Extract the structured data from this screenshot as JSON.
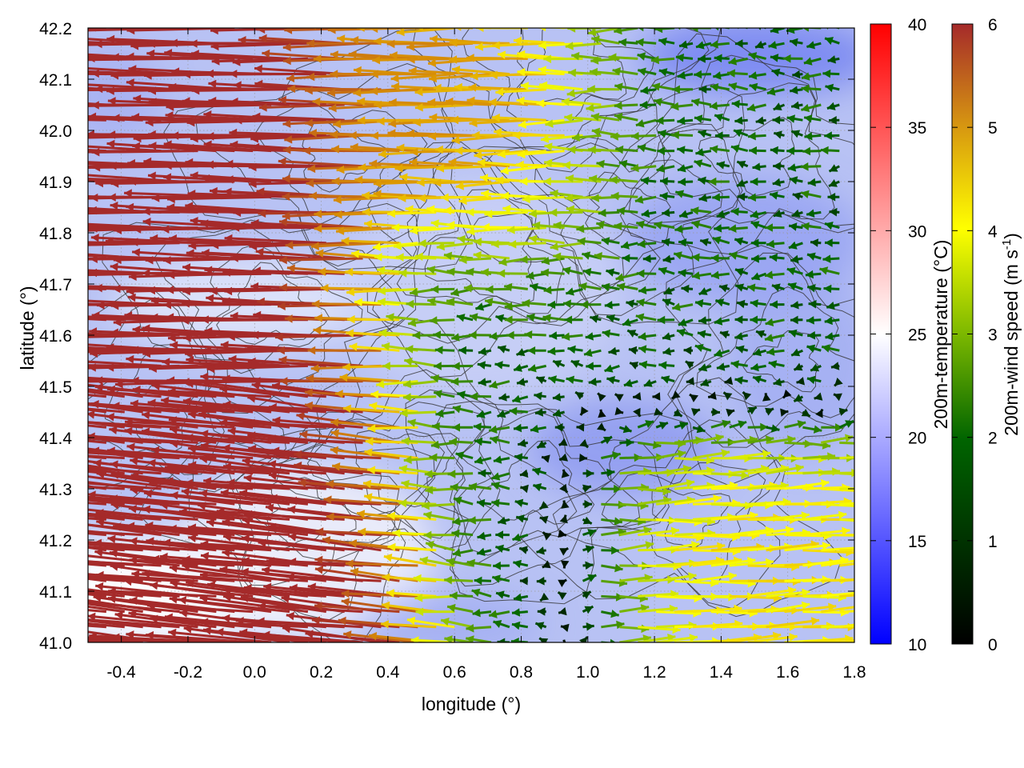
{
  "chart_data": {
    "type": "heatmap",
    "title": "",
    "xlabel": "longitude (°)",
    "ylabel": "latitude (°)",
    "xlim": [
      -0.5,
      1.8
    ],
    "ylim": [
      41.0,
      42.2
    ],
    "x_ticks": [
      "-0.4",
      "-0.2",
      "0.0",
      "0.2",
      "0.4",
      "0.6",
      "0.8",
      "1.0",
      "1.2",
      "1.4",
      "1.6",
      "1.8"
    ],
    "y_ticks": [
      "41.0",
      "41.1",
      "41.2",
      "41.3",
      "41.4",
      "41.5",
      "41.6",
      "41.7",
      "41.8",
      "41.9",
      "42.0",
      "42.1",
      "42.2"
    ],
    "grid": true,
    "background_field": {
      "name": "200m-temperature",
      "colorbar_label": "200m-temperature (°C)",
      "range": [
        10,
        40
      ],
      "ticks": [
        "10",
        "15",
        "20",
        "25",
        "30",
        "35",
        "40"
      ],
      "colors": [
        "#0000ff",
        "#ffffff",
        "#ff0000"
      ]
    },
    "vector_field": {
      "name": "200m-wind speed",
      "colorbar_label": "200m-wind speed (m s",
      "colorbar_label_sup": "-1",
      "colorbar_label_end": ")",
      "range": [
        0,
        6
      ],
      "ticks": [
        "0",
        "1",
        "2",
        "3",
        "4",
        "5",
        "6"
      ],
      "colors": [
        "#000000",
        "#006400",
        "#7cb800",
        "#ffff00",
        "#e0a000",
        "#c06018",
        "#a52a2a"
      ],
      "regimes": [
        {
          "region": "west",
          "lon_range": [
            -0.5,
            0.55
          ],
          "direction": "easterly flow (arrows point west)",
          "speed": 6
        },
        {
          "region": "north-central",
          "lon_range": [
            0.4,
            1.0
          ],
          "lat_range": [
            41.8,
            42.2
          ],
          "direction": "easterly",
          "speed": 3.5
        },
        {
          "region": "east",
          "lon_range": [
            1.0,
            1.8
          ],
          "lat_range": [
            41.5,
            42.2
          ],
          "direction": "easterly",
          "speed": 1.5
        },
        {
          "region": "south-east",
          "lon_range": [
            1.1,
            1.8
          ],
          "lat_range": [
            41.0,
            41.45
          ],
          "direction": "westerly (arrows point east)",
          "speed": 3.0
        }
      ]
    },
    "contours": {
      "color": "#333333",
      "description": "terrain height isolines"
    }
  }
}
